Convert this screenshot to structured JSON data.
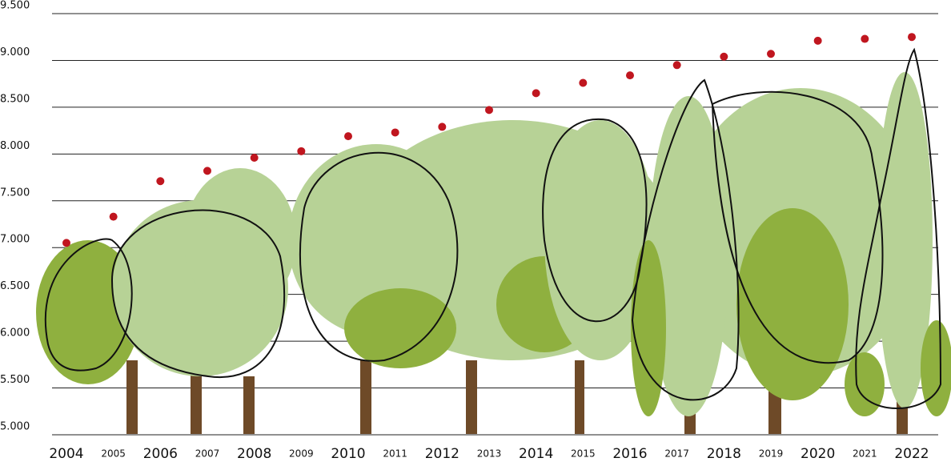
{
  "chart_data": {
    "type": "scatter",
    "categories": [
      "2004",
      "2005",
      "2006",
      "2007",
      "2008",
      "2009",
      "2010",
      "2011",
      "2012",
      "2013",
      "2014",
      "2015",
      "2016",
      "2017",
      "2018",
      "2019",
      "2020",
      "2021",
      "2022"
    ],
    "values": [
      7050,
      7330,
      7710,
      7820,
      7960,
      8030,
      8190,
      8230,
      8290,
      8470,
      8650,
      8760,
      8840,
      8950,
      9040,
      9070,
      9210,
      9230,
      9250
    ],
    "color": "#c0161f",
    "ylim": [
      5000,
      9500
    ],
    "yticks": [
      {
        "value": 5000,
        "label": "5.000"
      },
      {
        "value": 5500,
        "label": "5.500"
      },
      {
        "value": 6000,
        "label": "6.000"
      },
      {
        "value": 6500,
        "label": "6.500"
      },
      {
        "value": 7000,
        "label": "7.000"
      },
      {
        "value": 7500,
        "label": "7.500"
      },
      {
        "value": 8000,
        "label": "8.000"
      },
      {
        "value": 8500,
        "label": "8.500"
      },
      {
        "value": 9000,
        "label": "9.000"
      },
      {
        "value": 9500,
        "label": "9.500"
      }
    ],
    "grid": true
  }
}
